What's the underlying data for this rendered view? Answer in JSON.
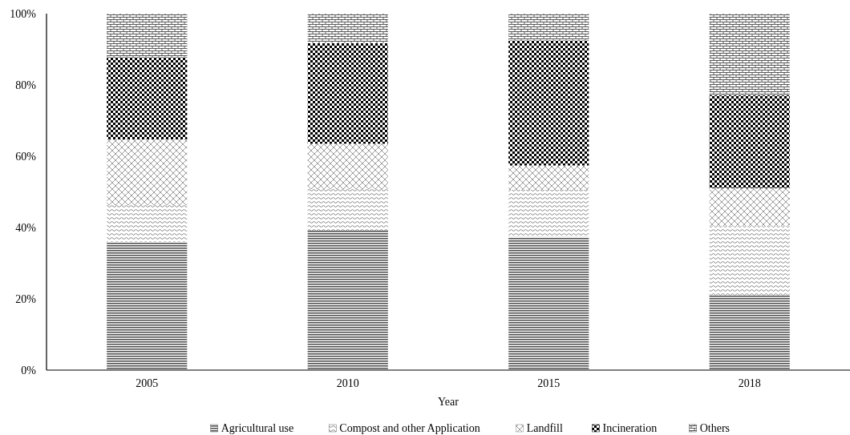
{
  "chart_data": {
    "type": "bar",
    "stacked": true,
    "xlabel": "Year",
    "categories": [
      "2005",
      "2010",
      "2015",
      "2018"
    ],
    "series": [
      {
        "name": "Agricultural use",
        "color": "#555555",
        "values": [
          36.0,
          39.1,
          37.4,
          21.0
        ]
      },
      {
        "name": "Compost and other Application",
        "color": "#666666",
        "values": [
          10.3,
          11.7,
          13.2,
          19.4
        ]
      },
      {
        "name": "Landfill",
        "color": "#808080",
        "values": [
          18.4,
          12.7,
          6.8,
          10.6
        ]
      },
      {
        "name": "Incineration",
        "color": "#000000",
        "values": [
          23.1,
          28.2,
          35.1,
          26.1
        ]
      },
      {
        "name": "Others",
        "color": "#333333",
        "values": [
          12.2,
          8.3,
          7.5,
          22.9
        ]
      }
    ],
    "ylim": [
      0,
      100
    ],
    "yticks": [
      {
        "value": 0,
        "label": "0%"
      },
      {
        "value": 20,
        "label": "20%"
      },
      {
        "value": 40,
        "label": "40%"
      },
      {
        "value": 60,
        "label": "60%"
      },
      {
        "value": 80,
        "label": "80%"
      },
      {
        "value": 100,
        "label": "100%"
      }
    ],
    "grid": false,
    "legend": "bottom"
  }
}
